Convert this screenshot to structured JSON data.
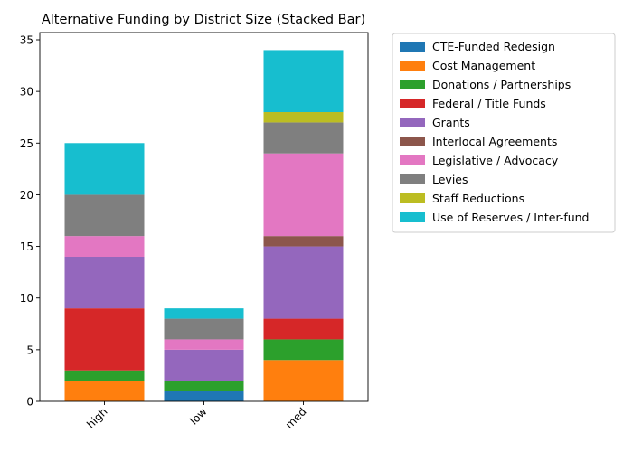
{
  "chart_data": {
    "type": "bar",
    "stacked": true,
    "title": "Alternative Funding by District Size (Stacked Bar)",
    "xlabel": "",
    "ylabel": "",
    "categories": [
      "high",
      "low",
      "med"
    ],
    "ylim": [
      0,
      35.7
    ],
    "yticks": [
      0,
      5,
      10,
      15,
      20,
      25,
      30,
      35
    ],
    "legend_position": "outside-right",
    "grid": false,
    "series": [
      {
        "name": "CTE-Funded Redesign",
        "color": "#1f77b4",
        "values": [
          0,
          1,
          0
        ]
      },
      {
        "name": "Cost Management",
        "color": "#ff7f0e",
        "values": [
          2,
          0,
          4
        ]
      },
      {
        "name": "Donations / Partnerships",
        "color": "#2ca02c",
        "values": [
          1,
          1,
          2
        ]
      },
      {
        "name": "Federal / Title Funds",
        "color": "#d62728",
        "values": [
          6,
          0,
          2
        ]
      },
      {
        "name": "Grants",
        "color": "#9467bd",
        "values": [
          5,
          3,
          7
        ]
      },
      {
        "name": "Interlocal Agreements",
        "color": "#8c564b",
        "values": [
          0,
          0,
          1
        ]
      },
      {
        "name": "Legislative / Advocacy",
        "color": "#e377c2",
        "values": [
          2,
          1,
          8
        ]
      },
      {
        "name": "Levies",
        "color": "#7f7f7f",
        "values": [
          4,
          2,
          3
        ]
      },
      {
        "name": "Staff Reductions",
        "color": "#bcbd22",
        "values": [
          0,
          0,
          1
        ]
      },
      {
        "name": "Use of Reserves / Inter-fund",
        "color": "#17becf",
        "values": [
          5,
          1,
          6
        ]
      }
    ]
  }
}
